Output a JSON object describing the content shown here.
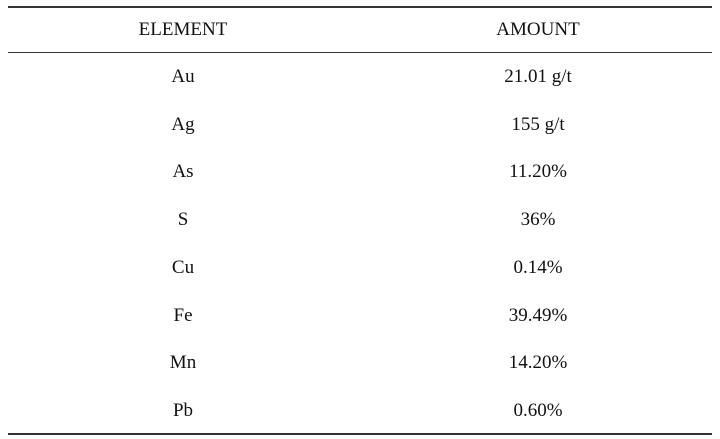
{
  "table": {
    "header": [
      "ELEMENT",
      "AMOUNT"
    ],
    "rows": [
      [
        "Au",
        "21.01 g/t"
      ],
      [
        "Ag",
        "155 g/t"
      ],
      [
        "As",
        "11.20%"
      ],
      [
        "S",
        "36%"
      ],
      [
        "Cu",
        "0.14%"
      ],
      [
        "Fe",
        "39.49%"
      ],
      [
        "Mn",
        "14.20%"
      ],
      [
        "Pb",
        "0.60%"
      ]
    ]
  }
}
